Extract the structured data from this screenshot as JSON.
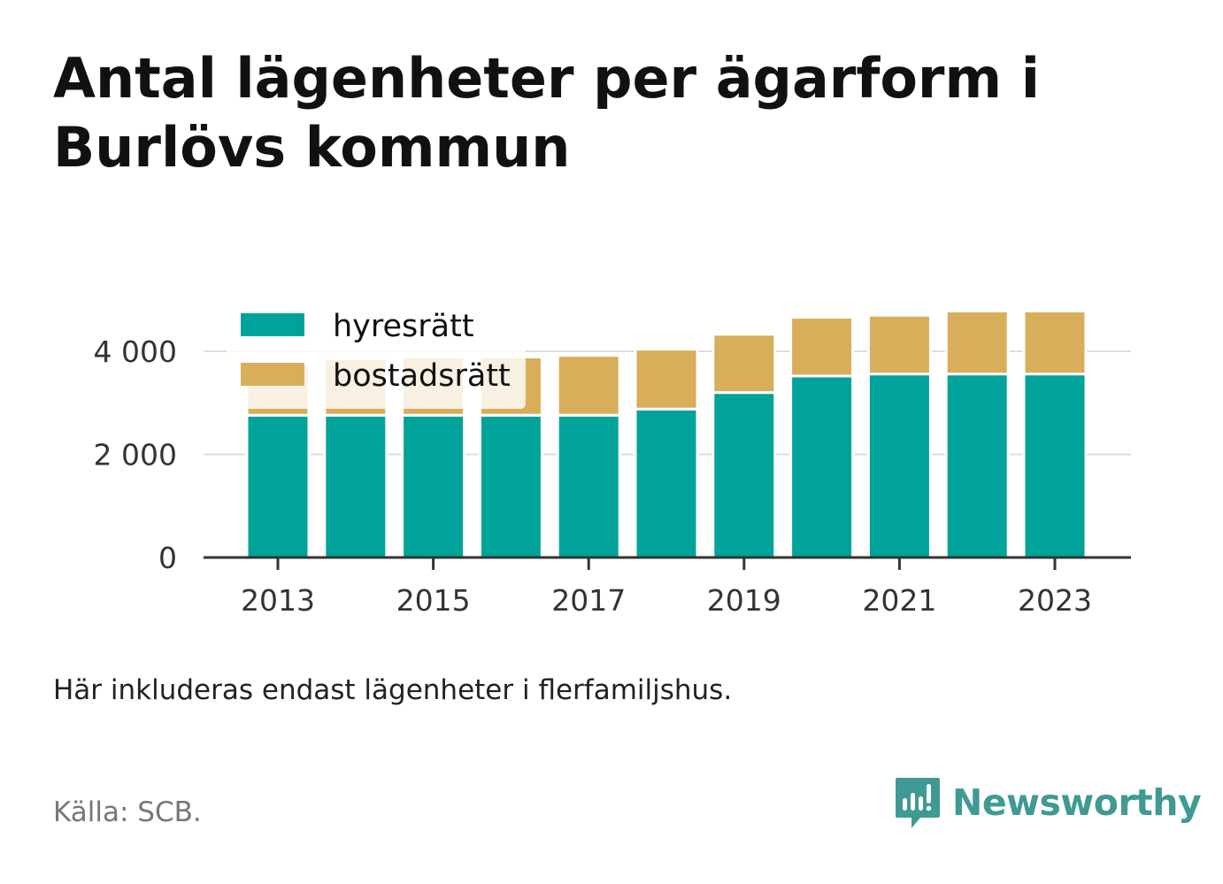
{
  "title": "Antal lägenheter per ägarform i Burlövs kommun",
  "note": "Här inkluderas endast lägenheter i flerfamiljshus.",
  "source": "Källa: SCB.",
  "brand": {
    "name": "Newsworthy",
    "icon": "newsworthy-logo-icon",
    "color": "#3f9a93"
  },
  "chart_data": {
    "type": "bar",
    "stacked": true,
    "x": [
      2013,
      2014,
      2015,
      2016,
      2017,
      2018,
      2019,
      2020,
      2021,
      2022,
      2023
    ],
    "x_tick_labels": [
      "2013",
      "2015",
      "2017",
      "2019",
      "2021",
      "2023"
    ],
    "y_tick_labels": [
      "0",
      "2 000",
      "4 000"
    ],
    "y_ticks": [
      0,
      2000,
      4000
    ],
    "ylim": [
      0,
      4600
    ],
    "grid": true,
    "legend_position": "top-left",
    "series": [
      {
        "name": "hyresrätt",
        "color": "#00a39a",
        "values": [
          2760,
          2760,
          2760,
          2760,
          2760,
          2880,
          3200,
          3520,
          3560,
          3560,
          3560
        ]
      },
      {
        "name": "bostadsrätt",
        "color": "#d9ae5a",
        "values": [
          1000,
          1100,
          1130,
          1130,
          1160,
          1160,
          1130,
          1140,
          1140,
          1220,
          1220
        ]
      }
    ]
  }
}
